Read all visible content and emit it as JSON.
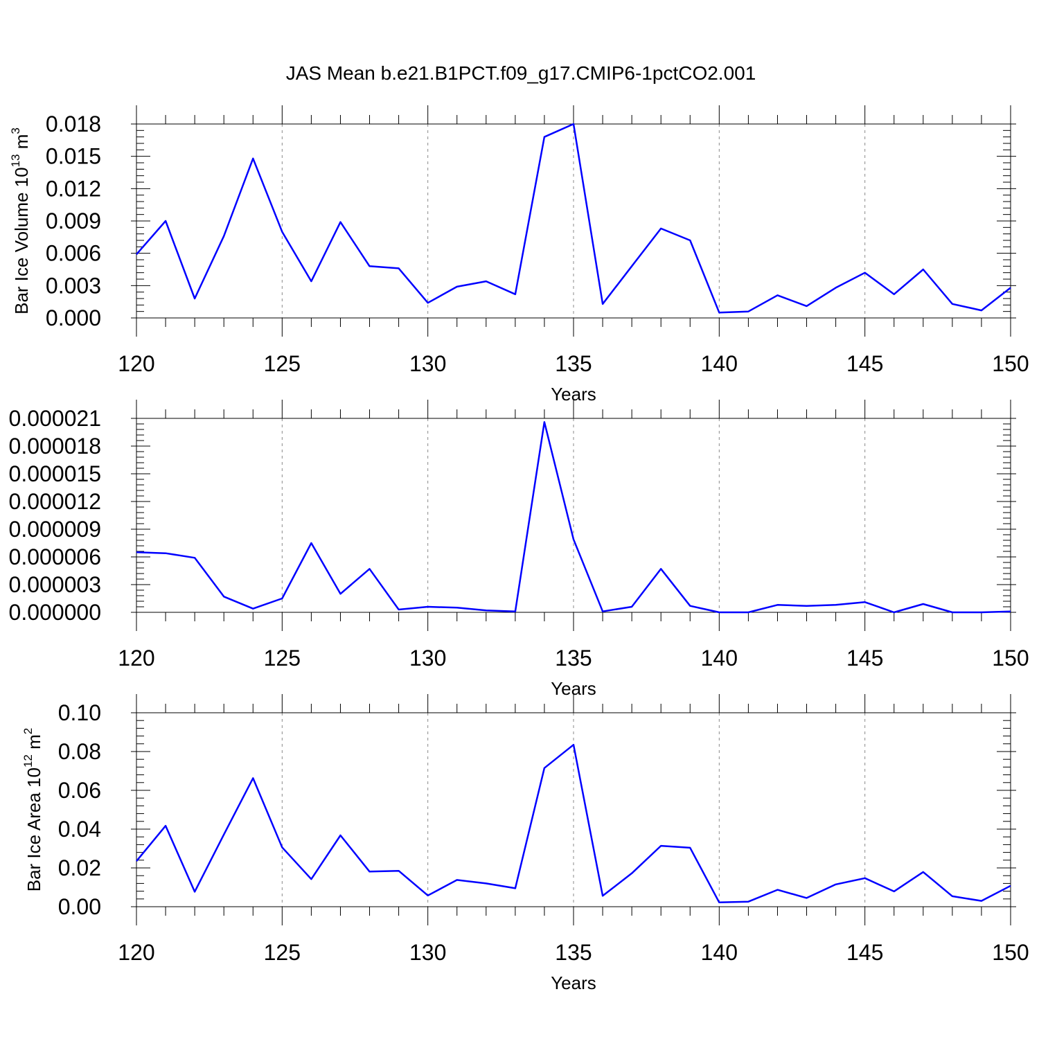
{
  "title": "JAS Mean b.e21.B1PCT.f09_g17.CMIP6-1pctCO2.001",
  "line_color": "#0000ff",
  "chart_data": [
    {
      "type": "line",
      "ylabel": "Bar Ice Volume 10",
      "ylabel_sup": "13",
      "ylabel_unit": "m",
      "ylabel_unit_sup": "3",
      "xlabel": "Years",
      "xlim": [
        120,
        150
      ],
      "ylim": [
        0,
        0.018
      ],
      "xticks": [
        "120",
        "125",
        "130",
        "135",
        "140",
        "145",
        "150"
      ],
      "xtick_values": [
        120,
        125,
        130,
        135,
        140,
        145,
        150
      ],
      "yticks": [
        "0.000",
        "0.003",
        "0.006",
        "0.009",
        "0.012",
        "0.015",
        "0.018"
      ],
      "ytick_values": [
        0,
        0.003,
        0.006,
        0.009,
        0.012,
        0.015,
        0.018
      ],
      "grid": "dashed vertical at major x ticks",
      "x": [
        120,
        121,
        122,
        123,
        124,
        125,
        126,
        127,
        128,
        129,
        130,
        131,
        132,
        133,
        134,
        135,
        136,
        137,
        138,
        139,
        140,
        141,
        142,
        143,
        144,
        145,
        146,
        147,
        148,
        149,
        150
      ],
      "values": [
        0.0059,
        0.009,
        0.0018,
        0.0076,
        0.0148,
        0.008,
        0.0034,
        0.0089,
        0.0048,
        0.0046,
        0.0014,
        0.0029,
        0.0034,
        0.0022,
        0.0168,
        0.018,
        0.0013,
        0.0048,
        0.0083,
        0.0072,
        0.0005,
        0.0006,
        0.0021,
        0.0011,
        0.0028,
        0.0042,
        0.0022,
        0.0045,
        0.0013,
        0.0007,
        0.0028
      ]
    },
    {
      "type": "line",
      "ylabel": "",
      "xlabel": "Years",
      "xlim": [
        120,
        150
      ],
      "ylim": [
        0,
        2.1e-05
      ],
      "xticks": [
        "120",
        "125",
        "130",
        "135",
        "140",
        "145",
        "150"
      ],
      "xtick_values": [
        120,
        125,
        130,
        135,
        140,
        145,
        150
      ],
      "yticks": [
        "0.000000",
        "0.000003",
        "0.000006",
        "0.000009",
        "0.000012",
        "0.000015",
        "0.000018",
        "0.000021"
      ],
      "ytick_values": [
        0,
        3e-06,
        6e-06,
        9e-06,
        1.2e-05,
        1.5e-05,
        1.8e-05,
        2.1e-05
      ],
      "grid": "dashed vertical at major x ticks",
      "x": [
        120,
        121,
        122,
        123,
        124,
        125,
        126,
        127,
        128,
        129,
        130,
        131,
        132,
        133,
        134,
        135,
        136,
        137,
        138,
        139,
        140,
        141,
        142,
        143,
        144,
        145,
        146,
        147,
        148,
        149,
        150
      ],
      "values": [
        6.5e-06,
        6.4e-06,
        5.9e-06,
        1.7e-06,
        4e-07,
        1.5e-06,
        7.5e-06,
        2e-06,
        4.7e-06,
        3e-07,
        6e-07,
        5e-07,
        2e-07,
        1e-07,
        2.06e-05,
        7.9e-06,
        1e-07,
        6e-07,
        4.7e-06,
        7e-07,
        0.0,
        0.0,
        8e-07,
        7e-07,
        8e-07,
        1.1e-06,
        0.0,
        9e-07,
        0.0,
        0.0,
        1e-07
      ]
    },
    {
      "type": "line",
      "ylabel": "Bar Ice Area 10",
      "ylabel_sup": "12",
      "ylabel_unit": "m",
      "ylabel_unit_sup": "2",
      "xlabel": "Years",
      "xlim": [
        120,
        150
      ],
      "ylim": [
        0,
        0.1
      ],
      "xticks": [
        "120",
        "125",
        "130",
        "135",
        "140",
        "145",
        "150"
      ],
      "xtick_values": [
        120,
        125,
        130,
        135,
        140,
        145,
        150
      ],
      "yticks": [
        "0.00",
        "0.02",
        "0.04",
        "0.06",
        "0.08",
        "0.10"
      ],
      "ytick_values": [
        0,
        0.02,
        0.04,
        0.06,
        0.08,
        0.1
      ],
      "grid": "dashed vertical at major x ticks",
      "x": [
        120,
        121,
        122,
        123,
        124,
        125,
        126,
        127,
        128,
        129,
        130,
        131,
        132,
        133,
        134,
        135,
        136,
        137,
        138,
        139,
        140,
        141,
        142,
        143,
        144,
        145,
        146,
        147,
        148,
        149,
        150
      ],
      "values": [
        0.0235,
        0.0417,
        0.0077,
        0.0372,
        0.0663,
        0.0306,
        0.0142,
        0.0368,
        0.0181,
        0.0185,
        0.0058,
        0.0138,
        0.012,
        0.0095,
        0.0715,
        0.0835,
        0.0056,
        0.0172,
        0.0314,
        0.0304,
        0.0022,
        0.0026,
        0.0087,
        0.0045,
        0.0115,
        0.0147,
        0.0079,
        0.0179,
        0.0054,
        0.003,
        0.0108
      ]
    }
  ]
}
